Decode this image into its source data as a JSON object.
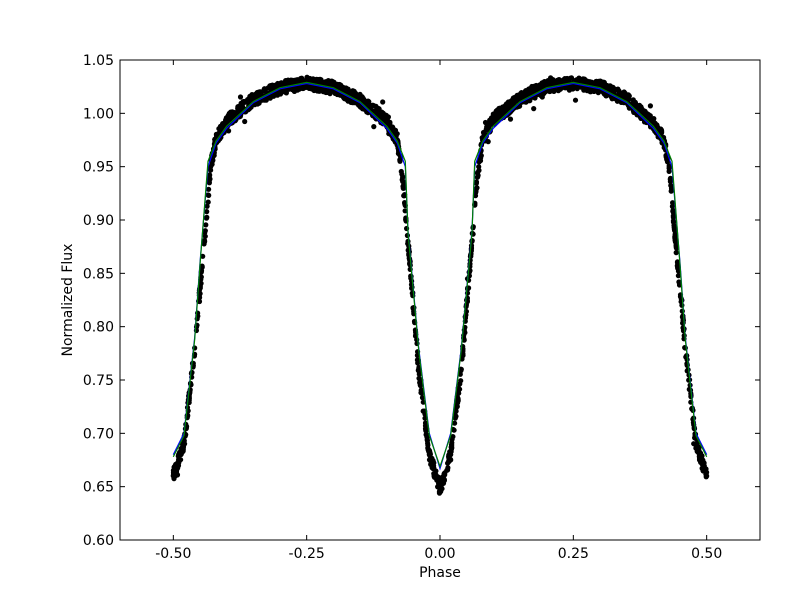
{
  "chart_data": {
    "type": "scatter",
    "title": "",
    "xlabel": "Phase",
    "ylabel": "Normalized Flux",
    "xlim": [
      -0.6,
      0.6
    ],
    "ylim": [
      0.6,
      1.05
    ],
    "xticks": [
      "-0.50",
      "-0.25",
      "0.00",
      "0.25",
      "0.50"
    ],
    "xtick_values": [
      -0.5,
      -0.25,
      0,
      0.25,
      0.5
    ],
    "yticks": [
      "0.60",
      "0.65",
      "0.70",
      "0.75",
      "0.80",
      "0.85",
      "0.90",
      "0.95",
      "1.00",
      "1.05"
    ],
    "ytick_values": [
      0.6,
      0.65,
      0.7,
      0.75,
      0.8,
      0.85,
      0.9,
      0.95,
      1.0,
      1.05
    ],
    "grid": false,
    "series": [
      {
        "kind": "points",
        "color": "#000000",
        "x": [
          -0.5,
          -0.48,
          -0.46,
          -0.44,
          -0.43,
          -0.42,
          -0.4,
          -0.35,
          -0.3,
          -0.25,
          -0.2,
          -0.15,
          -0.1,
          -0.08,
          -0.07,
          -0.06,
          -0.04,
          -0.02,
          0.0,
          0.02,
          0.04,
          0.06,
          0.07,
          0.08,
          0.1,
          0.15,
          0.2,
          0.25,
          0.3,
          0.35,
          0.4,
          0.42,
          0.43,
          0.44,
          0.46,
          0.48,
          0.5
        ],
        "y": [
          0.66,
          0.69,
          0.78,
          0.89,
          0.95,
          0.975,
          0.992,
          1.013,
          1.024,
          1.028,
          1.024,
          1.012,
          0.993,
          0.975,
          0.94,
          0.88,
          0.76,
          0.68,
          0.648,
          0.68,
          0.76,
          0.88,
          0.94,
          0.975,
          0.995,
          1.013,
          1.025,
          1.028,
          1.025,
          1.013,
          0.99,
          0.975,
          0.95,
          0.89,
          0.78,
          0.69,
          0.66
        ]
      },
      {
        "kind": "line",
        "color": "#0000ff",
        "x": [
          -0.5,
          -0.48,
          -0.46,
          -0.45,
          -0.435,
          -0.42,
          -0.4,
          -0.35,
          -0.3,
          -0.25,
          -0.2,
          -0.15,
          -0.1,
          -0.08,
          -0.065,
          -0.06,
          -0.04,
          -0.02,
          0.0,
          0.02,
          0.04,
          0.06,
          0.065,
          0.08,
          0.1,
          0.15,
          0.2,
          0.25,
          0.3,
          0.35,
          0.4,
          0.42,
          0.435,
          0.45,
          0.46,
          0.48,
          0.5
        ],
        "y": [
          0.68,
          0.7,
          0.79,
          0.86,
          0.95,
          0.972,
          0.986,
          1.01,
          1.023,
          1.028,
          1.023,
          1.01,
          0.986,
          0.972,
          0.95,
          0.89,
          0.78,
          0.7,
          0.667,
          0.7,
          0.78,
          0.89,
          0.95,
          0.972,
          0.986,
          1.01,
          1.023,
          1.028,
          1.023,
          1.01,
          0.986,
          0.972,
          0.95,
          0.86,
          0.79,
          0.7,
          0.68
        ]
      },
      {
        "kind": "line",
        "color": "#008000",
        "x": [
          -0.5,
          -0.48,
          -0.46,
          -0.45,
          -0.435,
          -0.42,
          -0.4,
          -0.35,
          -0.3,
          -0.25,
          -0.2,
          -0.15,
          -0.1,
          -0.08,
          -0.065,
          -0.06,
          -0.04,
          -0.02,
          0.0,
          0.02,
          0.04,
          0.06,
          0.065,
          0.08,
          0.1,
          0.15,
          0.2,
          0.25,
          0.3,
          0.35,
          0.4,
          0.42,
          0.435,
          0.45,
          0.46,
          0.48,
          0.5
        ],
        "y": [
          0.678,
          0.698,
          0.788,
          0.858,
          0.955,
          0.974,
          0.988,
          1.011,
          1.024,
          1.029,
          1.024,
          1.011,
          0.988,
          0.974,
          0.955,
          0.888,
          0.778,
          0.698,
          0.669,
          0.698,
          0.778,
          0.888,
          0.955,
          0.974,
          0.988,
          1.011,
          1.024,
          1.029,
          1.024,
          1.011,
          0.988,
          0.974,
          0.955,
          0.858,
          0.788,
          0.698,
          0.678
        ]
      }
    ]
  }
}
